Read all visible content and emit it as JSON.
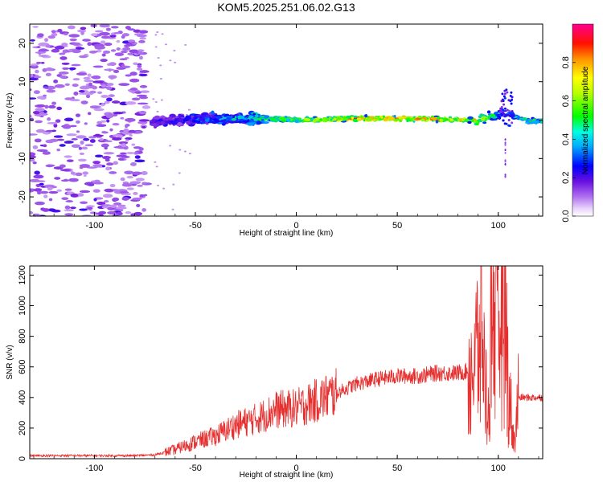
{
  "title": "KOM5.2025.251.06.02.G13",
  "colorbar": {
    "label": "Normalized spectral amplitude",
    "range": [
      0,
      1
    ],
    "ticks": [
      "0.0",
      "0.2",
      "0.4",
      "0.6",
      "0.8"
    ],
    "colormap": [
      "#ffffff",
      "#cda2f5",
      "#7a1fe0",
      "#0000ff",
      "#00c8ff",
      "#00ff00",
      "#ffff00",
      "#ff8000",
      "#ff0000",
      "#ff0080"
    ]
  },
  "chart_data": [
    {
      "type": "heatmap",
      "xlabel": "Height of straight line (km)",
      "ylabel": "Frequency (Hz)",
      "xlim": [
        -132,
        122
      ],
      "ylim": [
        -25,
        25
      ],
      "xticks": [
        "-100",
        "-50",
        "0",
        "50",
        "100"
      ],
      "yticks": [
        "-20",
        "-10",
        "0",
        "10",
        "20"
      ],
      "grid": false,
      "description_points": [
        {
          "x": -70,
          "f": -0.5,
          "amp": 0.2
        },
        {
          "x": -45,
          "f": 0.3,
          "amp": 0.35
        },
        {
          "x": -20,
          "f": 0.5,
          "amp": 0.45
        },
        {
          "x": 0,
          "f": 0.0,
          "amp": 0.6
        },
        {
          "x": 30,
          "f": 0.5,
          "amp": 0.85
        },
        {
          "x": 60,
          "f": 0.3,
          "amp": 0.8
        },
        {
          "x": 90,
          "f": 0.0,
          "amp": 0.7
        },
        {
          "x": 103,
          "f": 2.0,
          "amp": 0.3
        },
        {
          "x": 115,
          "f": -0.3,
          "amp": 0.5
        }
      ]
    },
    {
      "type": "line",
      "xlabel": "Height of straight line (km)",
      "ylabel": "SNR (v/v)",
      "xlim": [
        -132,
        122
      ],
      "ylim": [
        0,
        1260
      ],
      "xticks": [
        "-100",
        "-50",
        "0",
        "50",
        "100"
      ],
      "yticks": [
        "0",
        "200",
        "400",
        "600",
        "800",
        "1000",
        "1200"
      ],
      "grid": false,
      "color": "#e53030",
      "x": [
        -132,
        -100,
        -80,
        -70,
        -60,
        -50,
        -40,
        -30,
        -20,
        -10,
        0,
        10,
        20,
        30,
        40,
        50,
        60,
        70,
        80,
        88,
        92,
        95,
        97,
        100,
        102,
        105,
        108,
        110,
        115,
        122
      ],
      "y": [
        20,
        20,
        20,
        25,
        60,
        110,
        150,
        220,
        260,
        320,
        330,
        380,
        430,
        490,
        520,
        540,
        540,
        560,
        560,
        580,
        750,
        200,
        1100,
        620,
        1260,
        420,
        90,
        400,
        400,
        400
      ]
    }
  ]
}
